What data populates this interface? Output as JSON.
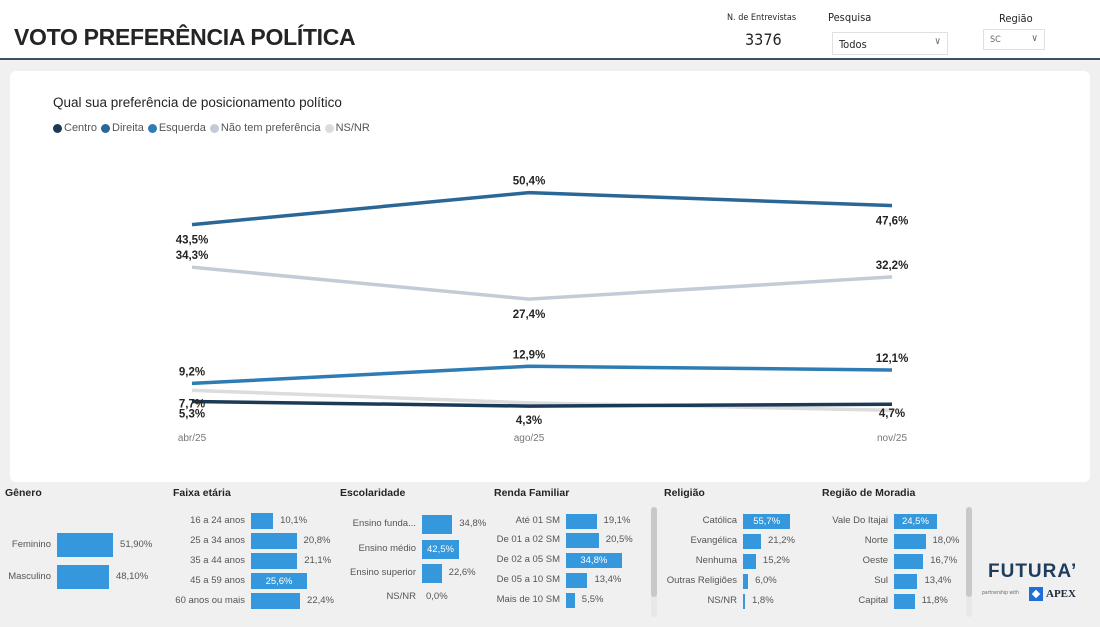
{
  "header": {
    "title": "VOTO PREFERÊNCIA POLÍTICA",
    "interviews_label": "N. de Entrevistas",
    "interviews_value": "3376",
    "pesquisa_label": "Pesquisa",
    "pesquisa_value": "Todos",
    "regiao_label": "Região",
    "regiao_value": "SC"
  },
  "chart_data": {
    "type": "line",
    "title": "Qual sua preferência de posicionamento político",
    "categories": [
      "abr/25",
      "ago/25",
      "nov/25"
    ],
    "legend_position": "top-left",
    "grid": false,
    "series": [
      {
        "name": "Centro",
        "color": "#1b3a57",
        "values": [
          5.3,
          4.3,
          4.7
        ],
        "labels": [
          "5,3%",
          "4,3%",
          "4,7%"
        ]
      },
      {
        "name": "Direita",
        "color": "#2a6796",
        "values": [
          43.5,
          50.4,
          47.6
        ],
        "labels": [
          "43,5%",
          "50,4%",
          "47,6%"
        ]
      },
      {
        "name": "Esquerda",
        "color": "#2e7cb3",
        "values": [
          9.2,
          12.9,
          12.1
        ],
        "labels": [
          "9,2%",
          "12,9%",
          "12,1%"
        ]
      },
      {
        "name": "Não tem preferência",
        "color": "#c3ccd6",
        "values": [
          34.3,
          27.4,
          32.2
        ],
        "labels": [
          "34,3%",
          "27,4%",
          "32,2%"
        ]
      },
      {
        "name": "NS/NR",
        "color": "#dcdcdc",
        "values": [
          7.7,
          5.0,
          3.4
        ],
        "labels": [
          "7,7%",
          "",
          ""
        ]
      }
    ]
  },
  "panels": [
    {
      "title": "Gênero",
      "items": [
        {
          "label": "Feminino",
          "value": 51.9,
          "text": "51,90%"
        },
        {
          "label": "Masculino",
          "value": 48.1,
          "text": "48,10%"
        }
      ]
    },
    {
      "title": "Faixa etária",
      "items": [
        {
          "label": "16 a 24 anos",
          "value": 10.1,
          "text": "10,1%"
        },
        {
          "label": "25 a 34 anos",
          "value": 20.8,
          "text": "20,8%"
        },
        {
          "label": "35 a 44 anos",
          "value": 21.1,
          "text": "21,1%"
        },
        {
          "label": "45 a 59 anos",
          "value": 25.6,
          "text": "25,6%"
        },
        {
          "label": "60 anos ou mais",
          "value": 22.4,
          "text": "22,4%"
        }
      ]
    },
    {
      "title": "Escolaridade",
      "items": [
        {
          "label": "Ensino funda...",
          "value": 34.8,
          "text": "34,8%"
        },
        {
          "label": "Ensino médio",
          "value": 42.5,
          "text": "42,5%"
        },
        {
          "label": "Ensino superior",
          "value": 22.6,
          "text": "22,6%"
        },
        {
          "label": "NS/NR",
          "value": 0.0,
          "text": "0,0%"
        }
      ]
    },
    {
      "title": "Renda Familiar",
      "items": [
        {
          "label": "Até 01 SM",
          "value": 19.1,
          "text": "19,1%"
        },
        {
          "label": "De 01 a 02 SM",
          "value": 20.5,
          "text": "20,5%"
        },
        {
          "label": "De 02 a 05 SM",
          "value": 34.8,
          "text": "34,8%"
        },
        {
          "label": "De 05 a 10 SM",
          "value": 13.4,
          "text": "13,4%"
        },
        {
          "label": "Mais de 10 SM",
          "value": 5.5,
          "text": "5,5%"
        }
      ]
    },
    {
      "title": "Religião",
      "items": [
        {
          "label": "Católica",
          "value": 55.7,
          "text": "55,7%"
        },
        {
          "label": "Evangélica",
          "value": 21.2,
          "text": "21,2%"
        },
        {
          "label": "Nenhuma",
          "value": 15.2,
          "text": "15,2%"
        },
        {
          "label": "Outras Religiões",
          "value": 6.0,
          "text": "6,0%"
        },
        {
          "label": "NS/NR",
          "value": 1.8,
          "text": "1,8%"
        }
      ]
    },
    {
      "title": "Região de Moradia",
      "items": [
        {
          "label": "Vale Do Itajai",
          "value": 24.5,
          "text": "24,5%"
        },
        {
          "label": "Norte",
          "value": 18.0,
          "text": "18,0%"
        },
        {
          "label": "Oeste",
          "value": 16.7,
          "text": "16,7%"
        },
        {
          "label": "Sul",
          "value": 13.4,
          "text": "13,4%"
        },
        {
          "label": "Capital",
          "value": 11.8,
          "text": "11,8%"
        }
      ]
    }
  ],
  "branding": {
    "logo": "FUTURA’",
    "partner_text": "partnership with",
    "partner_logo": "APEX"
  }
}
